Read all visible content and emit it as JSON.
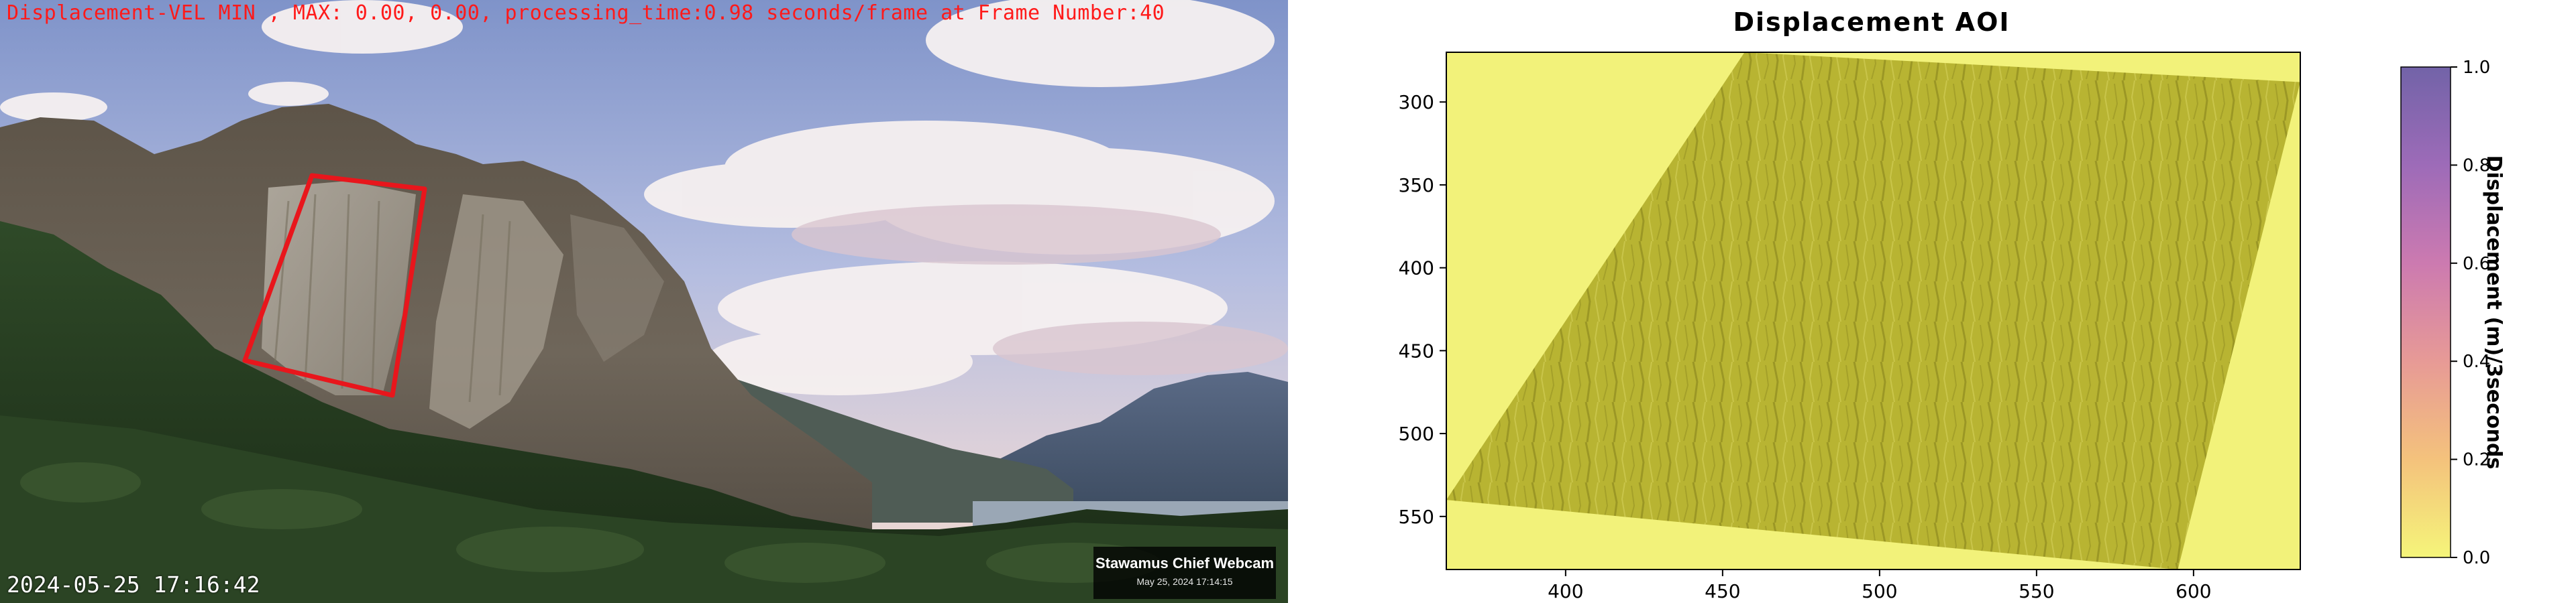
{
  "webcam": {
    "overlay_text": "Displacement-VEL MIN , MAX: 0.00, 0.00, processing_time:0.98 seconds/frame at Frame Number:40",
    "datetime": "2024-05-25 17:16:42",
    "label_title": "Stawamus Chief Webcam",
    "label_date": "May 25, 2024 17:14:15",
    "aoi_color": "#e8161c"
  },
  "chart_data": {
    "type": "heatmap",
    "title": "Displacement AOI",
    "xlabel": "",
    "ylabel": "",
    "xlim": [
      362,
      634
    ],
    "ylim": [
      582,
      270
    ],
    "xticks": [
      400,
      450,
      500,
      550,
      600
    ],
    "yticks": [
      300,
      350,
      400,
      450,
      500,
      550
    ],
    "aoi_polygon": [
      [
        457,
        270
      ],
      [
        634,
        288
      ],
      [
        595,
        582
      ],
      [
        362,
        540
      ]
    ],
    "colorbar": {
      "label": "Displacement (m)/3seconds",
      "min": 0.0,
      "max": 1.0,
      "ticks": [
        "0.0",
        "0.2",
        "0.4",
        "0.6",
        "0.8",
        "1.0"
      ],
      "colors": [
        "#f5f57a",
        "#f4c27c",
        "#e79a96",
        "#cc7ab0",
        "#9d6bb8",
        "#7263a8"
      ]
    },
    "values_summary": {
      "min": 0.0,
      "max": 0.0
    },
    "colors": {
      "background_fill": "#f2f27a",
      "aoi_fill": "#b8b432"
    }
  }
}
